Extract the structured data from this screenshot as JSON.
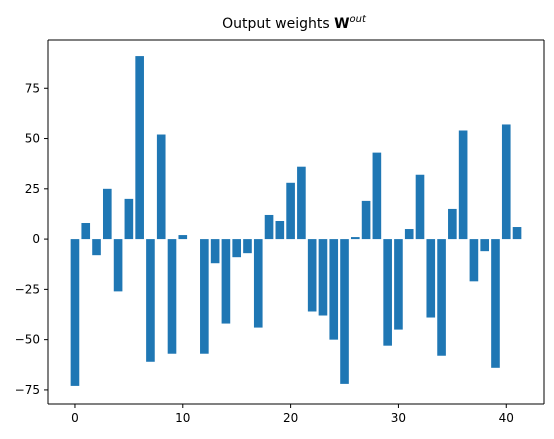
{
  "chart_data": {
    "type": "bar",
    "title": "Output weights",
    "title_symbol": "W",
    "title_superscript": "out",
    "xlabel": "",
    "ylabel": "",
    "x": [
      0,
      1,
      2,
      3,
      4,
      5,
      6,
      7,
      8,
      9,
      10,
      11,
      12,
      13,
      14,
      15,
      16,
      17,
      18,
      19,
      20,
      21,
      22,
      23,
      24,
      25,
      26,
      27,
      28,
      29,
      30,
      31,
      32,
      33,
      34,
      35,
      36,
      37,
      38,
      39,
      40,
      41
    ],
    "values": [
      -73,
      8,
      -8,
      25,
      -26,
      20,
      91,
      -61,
      52,
      -57,
      2,
      0,
      -57,
      -12,
      -42,
      -9,
      -7,
      -44,
      12,
      9,
      28,
      36,
      -36,
      -38,
      -50,
      -72,
      1,
      19,
      43,
      -53,
      -45,
      5,
      32,
      -39,
      -58,
      15,
      54,
      -21,
      -6,
      -64,
      57,
      6
    ],
    "xlim": [
      -2.5,
      43.5
    ],
    "ylim": [
      -82,
      99
    ],
    "xticks": [
      0,
      10,
      20,
      30,
      40
    ],
    "yticks": [
      -75,
      -50,
      -25,
      0,
      25,
      50,
      75
    ],
    "grid": false,
    "bar_color": "#1f77b4"
  }
}
